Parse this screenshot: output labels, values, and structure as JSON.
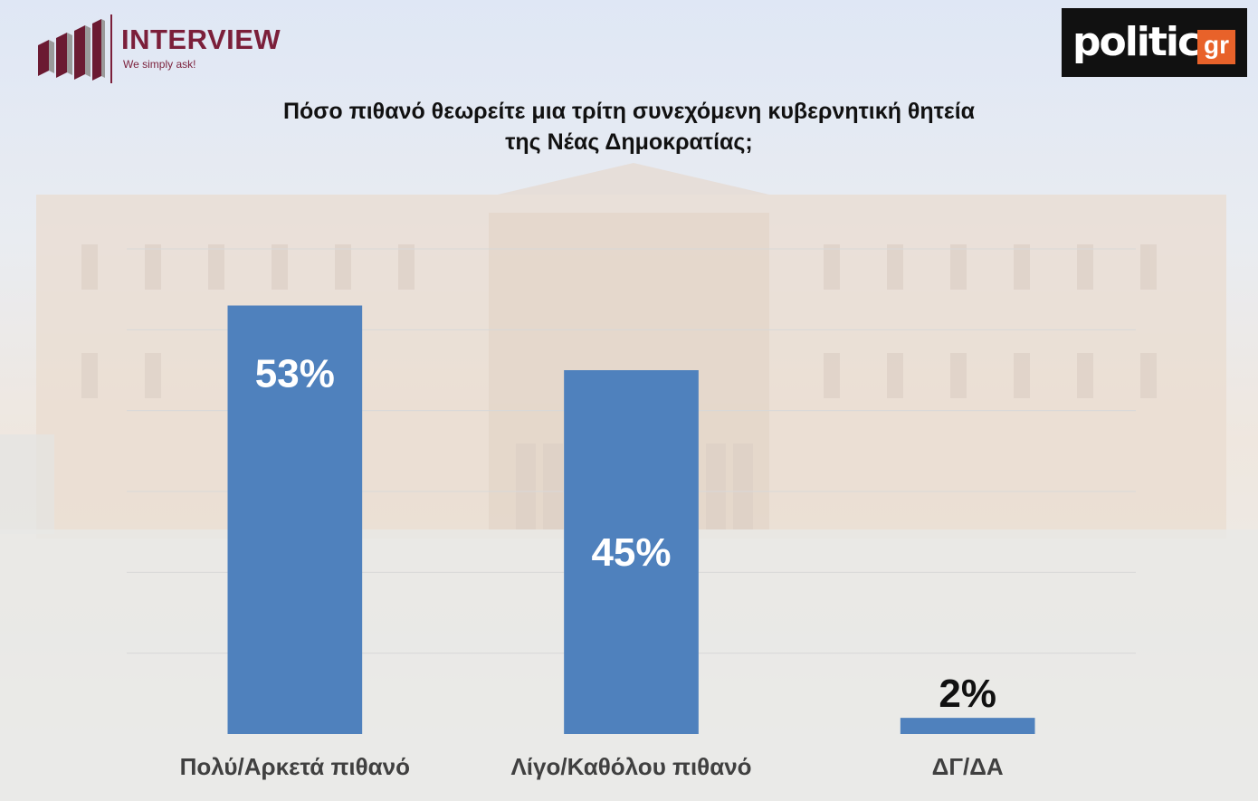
{
  "header": {
    "brand_name": "INTERVIEW",
    "brand_tagline": "We simply ask!",
    "publisher_logo": "politic",
    "publisher_suffix": "gr"
  },
  "colors": {
    "bar": "#4f81bd",
    "brand": "#7b1f3a",
    "publisher_accent": "#e8622a"
  },
  "chart_data": {
    "type": "bar",
    "title_lines": [
      "Πόσο πιθανό θεωρείτε μια τρίτη συνεχόμενη κυβερνητική θητεία",
      "της Νέας Δημοκρατίας;"
    ],
    "categories": [
      "Πολύ/Αρκετά πιθανό",
      "Λίγο/Καθόλου πιθανό",
      "ΔΓ/ΔΑ"
    ],
    "values": [
      53,
      45,
      2
    ],
    "value_labels": [
      "53%",
      "45%",
      "2%"
    ],
    "ylim": [
      0,
      60
    ],
    "grid": true,
    "legend": "none"
  }
}
